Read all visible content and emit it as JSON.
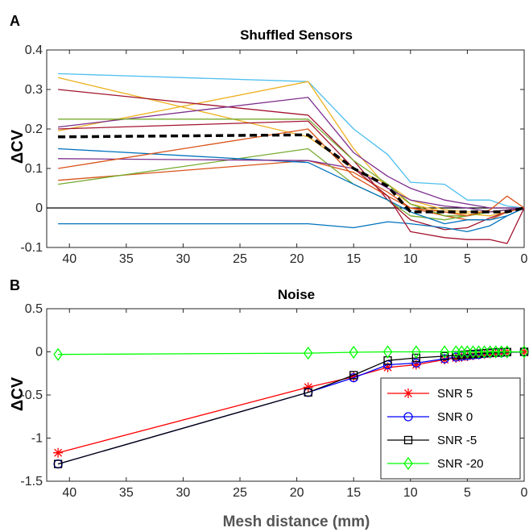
{
  "figure": {
    "panel_a_letter": "A",
    "panel_b_letter": "B",
    "shared_xlabel": "Mesh distance (mm)"
  },
  "chart_data": [
    {
      "type": "line",
      "title": "Shuffled Sensors",
      "xlabel": "",
      "ylabel": "ΔCV",
      "xlim": [
        42,
        0
      ],
      "ylim": [
        -0.1,
        0.4
      ],
      "x_reversed": true,
      "xticks": [
        40,
        35,
        30,
        25,
        20,
        15,
        10,
        5,
        0
      ],
      "xtick_labels": [
        "40",
        "35",
        "30",
        "25",
        "20",
        "15",
        "10",
        "5",
        "0"
      ],
      "yticks": [
        -0.1,
        0,
        0.1,
        0.2,
        0.3,
        0.4
      ],
      "ytick_labels": [
        "-0.1",
        "0",
        "0.1",
        "0.2",
        "0.3",
        "0.4"
      ],
      "reference_line_y": 0,
      "x": [
        41,
        19,
        15,
        12,
        10,
        7,
        5,
        3,
        1.5,
        0
      ],
      "series": [
        {
          "color": "#4dbeee",
          "values": [
            0.34,
            0.32,
            0.2,
            0.135,
            0.065,
            0.06,
            0.02,
            0.02,
            0.005,
            0
          ]
        },
        {
          "color": "#edb120",
          "values": [
            0.33,
            0.18,
            0.1,
            0.06,
            0.02,
            -0.005,
            -0.01,
            -0.01,
            -0.005,
            0
          ]
        },
        {
          "color": "#edb120",
          "values": [
            0.195,
            0.32,
            0.15,
            0.05,
            0.01,
            -0.01,
            -0.015,
            -0.02,
            -0.01,
            0
          ]
        },
        {
          "color": "#a2142f",
          "values": [
            0.3,
            0.235,
            0.12,
            0.02,
            -0.03,
            -0.055,
            -0.05,
            -0.025,
            -0.01,
            0
          ]
        },
        {
          "color": "#d95319",
          "values": [
            0.07,
            0.12,
            0.09,
            0.04,
            0.0,
            -0.02,
            -0.03,
            -0.03,
            -0.01,
            0
          ]
        },
        {
          "color": "#7e2f8e",
          "values": [
            0.205,
            0.28,
            0.14,
            0.08,
            0.05,
            0.02,
            0.01,
            0.0,
            0.0,
            0
          ]
        },
        {
          "color": "#77ac30",
          "values": [
            0.225,
            0.225,
            0.12,
            0.06,
            0.01,
            -0.02,
            -0.02,
            -0.01,
            -0.005,
            0
          ]
        },
        {
          "color": "#77ac30",
          "values": [
            0.06,
            0.15,
            0.06,
            0.02,
            -0.02,
            -0.03,
            -0.02,
            -0.01,
            -0.005,
            0
          ]
        },
        {
          "color": "#0072bd",
          "values": [
            0.15,
            0.115,
            0.06,
            0.02,
            -0.01,
            -0.04,
            -0.03,
            -0.03,
            -0.02,
            0
          ]
        },
        {
          "color": "#0072bd",
          "values": [
            -0.04,
            -0.04,
            -0.05,
            -0.035,
            -0.04,
            -0.05,
            -0.06,
            -0.045,
            -0.02,
            0
          ]
        },
        {
          "color": "#7e2f8e",
          "values": [
            0.125,
            0.12,
            0.1,
            0.05,
            0.02,
            0.005,
            0.0,
            -0.01,
            -0.005,
            0
          ]
        },
        {
          "color": "#d95319",
          "values": [
            0.1,
            0.2,
            0.08,
            0.03,
            0.0,
            -0.01,
            -0.02,
            -0.005,
            0.03,
            0
          ]
        },
        {
          "color": "#a2142f",
          "values": [
            0.2,
            0.22,
            0.1,
            0.03,
            -0.06,
            -0.075,
            -0.08,
            -0.08,
            -0.09,
            0
          ]
        },
        {
          "color": "#000000",
          "dashed": true,
          "width": 3.5,
          "values": [
            0.18,
            0.185,
            0.1,
            0.055,
            -0.01,
            -0.01,
            -0.01,
            -0.01,
            -0.01,
            0
          ]
        }
      ]
    },
    {
      "type": "line",
      "title": "Noise",
      "xlabel": "Mesh distance (mm)",
      "ylabel": "ΔCV",
      "xlim": [
        42,
        0
      ],
      "ylim": [
        -1.5,
        0.5
      ],
      "x_reversed": true,
      "xticks": [
        40,
        35,
        30,
        25,
        20,
        15,
        10,
        5,
        0
      ],
      "xtick_labels": [
        "40",
        "35",
        "30",
        "25",
        "20",
        "15",
        "10",
        "5",
        "0"
      ],
      "yticks": [
        -1.5,
        -1,
        -0.5,
        0,
        0.5
      ],
      "ytick_labels": [
        "-1.5",
        "-1",
        "-0.5",
        "0",
        "0.5"
      ],
      "x": [
        41,
        19,
        15,
        12,
        9.5,
        7,
        6,
        5.5,
        5,
        4.5,
        4,
        3.5,
        3,
        2.5,
        2,
        1.5,
        0
      ],
      "legend_position": "bottom-right",
      "series": [
        {
          "name": "SNR 5",
          "color": "#ff0000",
          "marker": "asterisk",
          "values": [
            -1.17,
            -0.41,
            -0.29,
            -0.18,
            -0.15,
            -0.09,
            -0.07,
            -0.06,
            -0.05,
            -0.04,
            -0.03,
            -0.025,
            -0.02,
            -0.015,
            -0.01,
            -0.005,
            0
          ]
        },
        {
          "name": "SNR 0",
          "color": "#0000ff",
          "marker": "circle",
          "values": [
            -1.3,
            -0.47,
            -0.3,
            -0.15,
            -0.13,
            -0.08,
            -0.06,
            -0.05,
            -0.045,
            -0.035,
            -0.03,
            -0.02,
            -0.015,
            -0.01,
            -0.01,
            -0.005,
            0
          ]
        },
        {
          "name": "SNR -5",
          "color": "#000000",
          "marker": "square",
          "values": [
            -1.3,
            -0.47,
            -0.27,
            -0.1,
            -0.07,
            -0.05,
            -0.04,
            -0.035,
            -0.03,
            -0.025,
            -0.02,
            -0.015,
            -0.01,
            -0.008,
            -0.005,
            -0.003,
            0
          ]
        },
        {
          "name": "SNR -20",
          "color": "#00ff00",
          "marker": "diamond",
          "values": [
            -0.03,
            -0.015,
            -0.005,
            0.0,
            0.0,
            0.0,
            0.0,
            0.0,
            0.0,
            0.0,
            0.0,
            0.0,
            0.0,
            0.0,
            0.0,
            0.0,
            0.0
          ]
        }
      ]
    }
  ]
}
